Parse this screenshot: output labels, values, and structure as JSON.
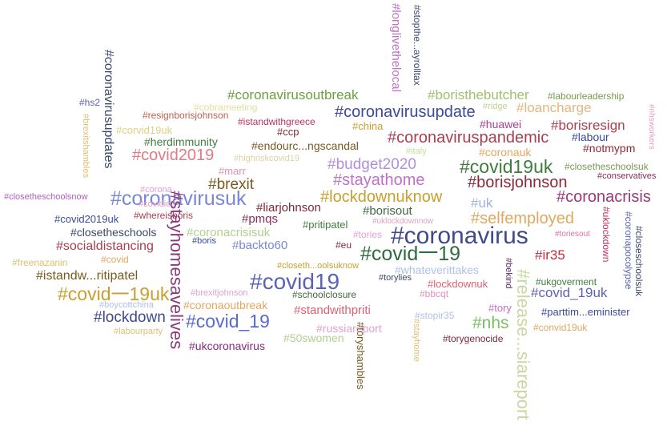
{
  "words": [
    {
      "text": "#coronavirus",
      "color": "#3f4a8a"
    },
    {
      "text": "#covid19",
      "color": "#5b63b8"
    },
    {
      "text": "#covid一19",
      "color": "#2e6b3e"
    },
    {
      "text": "#coronavirusuk",
      "color": "#7b86d6"
    },
    {
      "text": "#covid19uk",
      "color": "#3f7d3f"
    },
    {
      "text": "#covid_19",
      "color": "#5b6ad0"
    },
    {
      "text": "#covid一19uk",
      "color": "#c8a030"
    },
    {
      "text": "#coronavirusupdate",
      "color": "#3b4a9a"
    },
    {
      "text": "#coronaviruspandemic",
      "color": "#a84050"
    },
    {
      "text": "#borisjohnson",
      "color": "#8a2a3a"
    },
    {
      "text": "#lockdownuknow",
      "color": "#c8a030"
    },
    {
      "text": "#selfemployed",
      "color": "#e0a860"
    },
    {
      "text": "#coronacrisis",
      "color": "#9a3a7a"
    },
    {
      "text": "#covid2019",
      "color": "#e07a8a"
    },
    {
      "text": "#stayathome",
      "color": "#c070c8"
    },
    {
      "text": "#budget2020",
      "color": "#b090e0"
    },
    {
      "text": "#lockdown",
      "color": "#3f4a8a"
    },
    {
      "text": "#brexit",
      "color": "#7a5a20"
    },
    {
      "text": "#nhs",
      "color": "#7ac060"
    },
    {
      "text": "#coronavirusoutbreak",
      "color": "#6aa040"
    },
    {
      "text": "#boristhebutcher",
      "color": "#a0c070"
    },
    {
      "text": "#loancharge",
      "color": "#e0b880"
    },
    {
      "text": "#borisresign",
      "color": "#a84050"
    },
    {
      "text": "#covid_19uk",
      "color": "#5b63b8"
    },
    {
      "text": "#ir35",
      "color": "#c03040"
    },
    {
      "text": "#uk",
      "color": "#a0b0e0"
    },
    {
      "text": "#huawei",
      "color": "#a84090"
    },
    {
      "text": "#labour",
      "color": "#3b4a9a"
    },
    {
      "text": "#notmypm",
      "color": "#8a2a3a"
    },
    {
      "text": "#coronauk",
      "color": "#e0a860"
    },
    {
      "text": "#socialdistancing",
      "color": "#a84050"
    },
    {
      "text": "#istandw...ritipatel",
      "color": "#7a5a20"
    },
    {
      "text": "#closetheschools",
      "color": "#3b4a6a"
    },
    {
      "text": "#covid2019uk",
      "color": "#3b4a9a"
    },
    {
      "text": "#closetheschoolsnow",
      "color": "#b060c0"
    },
    {
      "text": "#liarjohnson",
      "color": "#7a2a3a"
    },
    {
      "text": "#pmqs",
      "color": "#8a2a5a"
    },
    {
      "text": "#borisout",
      "color": "#3f6a3f"
    },
    {
      "text": "#coronacrisisuk",
      "color": "#b0d090"
    },
    {
      "text": "#backto60",
      "color": "#7b86d6"
    },
    {
      "text": "#pritipatel",
      "color": "#3f7d3f"
    },
    {
      "text": "#standwithpriti",
      "color": "#e06070"
    },
    {
      "text": "#russiareport",
      "color": "#e0a0d8"
    },
    {
      "text": "#coronaoutbreak",
      "color": "#e0a860"
    },
    {
      "text": "#50swomen",
      "color": "#b0d090"
    },
    {
      "text": "#ukcoronavirus",
      "color": "#8a2a7a"
    },
    {
      "text": "#herdimmunity",
      "color": "#3f7d3f"
    },
    {
      "text": "#endourc...ngscandal",
      "color": "#7a5a20"
    },
    {
      "text": "#ccp",
      "color": "#7a2a3a"
    },
    {
      "text": "#china",
      "color": "#c8a030"
    },
    {
      "text": "#marr",
      "color": "#e090b0"
    },
    {
      "text": "#whateverittakes",
      "color": "#b0c0e8"
    },
    {
      "text": "#lockdownuk",
      "color": "#e06070"
    },
    {
      "text": "#bbcqt",
      "color": "#e090c0"
    },
    {
      "text": "#tory",
      "color": "#c070c8"
    },
    {
      "text": "#parttim...eminister",
      "color": "#3b4a9a"
    },
    {
      "text": "#convid19uk",
      "color": "#e0a860"
    },
    {
      "text": "#ukgoverment",
      "color": "#3f7d3f"
    },
    {
      "text": "#torygenocide",
      "color": "#7a2a3a"
    },
    {
      "text": "#stopir35",
      "color": "#b0c0e8"
    },
    {
      "text": "#schoolclosure",
      "color": "#3f6a3f"
    },
    {
      "text": "#torylies",
      "color": "#3b4a6a"
    },
    {
      "text": "#closeth...oolsuknow",
      "color": "#c8a030"
    },
    {
      "text": "#tories",
      "color": "#e0a0d8"
    },
    {
      "text": "#eu",
      "color": "#8a2a3a"
    },
    {
      "text": "#boris",
      "color": "#3b4a9a"
    },
    {
      "text": "#whereisboris",
      "color": "#a84050"
    },
    {
      "text": "#corona",
      "color": "#e0a0d8"
    },
    {
      "text": "#highriskcovid19",
      "color": "#e0d0a0"
    },
    {
      "text": "#italy",
      "color": "#c0e0a0"
    },
    {
      "text": "#closetheschoolsuk",
      "color": "#7a9a50"
    },
    {
      "text": "#conservatives",
      "color": "#8a2a5a"
    },
    {
      "text": "#ridge",
      "color": "#c0d090"
    },
    {
      "text": "#labourleadership",
      "color": "#7a9a50"
    },
    {
      "text": "#cobrameeting",
      "color": "#e0e0a0"
    },
    {
      "text": "#resignborisjohnson",
      "color": "#c06050"
    },
    {
      "text": "#istandwithgreece",
      "color": "#c03060"
    },
    {
      "text": "#corvid19uk",
      "color": "#e0d080"
    },
    {
      "text": "#hs2",
      "color": "#5b63b8"
    },
    {
      "text": "#uklockdownnow",
      "color": "#e0a0c0"
    },
    {
      "text": "#freenazanin",
      "color": "#e0c070"
    },
    {
      "text": "#covid",
      "color": "#e0a860"
    },
    {
      "text": "#covidiot",
      "color": "#e0a0c0"
    },
    {
      "text": "#boycottchina",
      "color": "#b0c0e8"
    },
    {
      "text": "#labourparty",
      "color": "#e0c070"
    },
    {
      "text": "#brexitjohnson",
      "color": "#e0a0d8"
    },
    {
      "text": "#toriesout",
      "color": "#e070a0"
    },
    {
      "text": "#coronavirusupdates",
      "color": "#3b4a6a"
    },
    {
      "text": "#brexitshambles",
      "color": "#e0c070"
    },
    {
      "text": "#stayhomesavelives",
      "color": "#8a3a7a"
    },
    {
      "text": "#toryshambles",
      "color": "#7a5a20"
    },
    {
      "text": "#stayhome",
      "color": "#e0c070"
    },
    {
      "text": "#longlivethelocal",
      "color": "#c070c8"
    },
    {
      "text": "#stopthe...ayrolltax",
      "color": "#3b4a6a"
    },
    {
      "text": "#release...siareport",
      "color": "#c8d8a0"
    },
    {
      "text": "#bekind",
      "color": "#5b2a6a"
    },
    {
      "text": "#uklockdown",
      "color": "#c03060"
    },
    {
      "text": "#closeschoolsuk",
      "color": "#3b4a6a"
    },
    {
      "text": "#coronapocolypse",
      "color": "#5b63b8"
    },
    {
      "text": "#nhsworkers",
      "color": "#e0a0c0"
    }
  ]
}
